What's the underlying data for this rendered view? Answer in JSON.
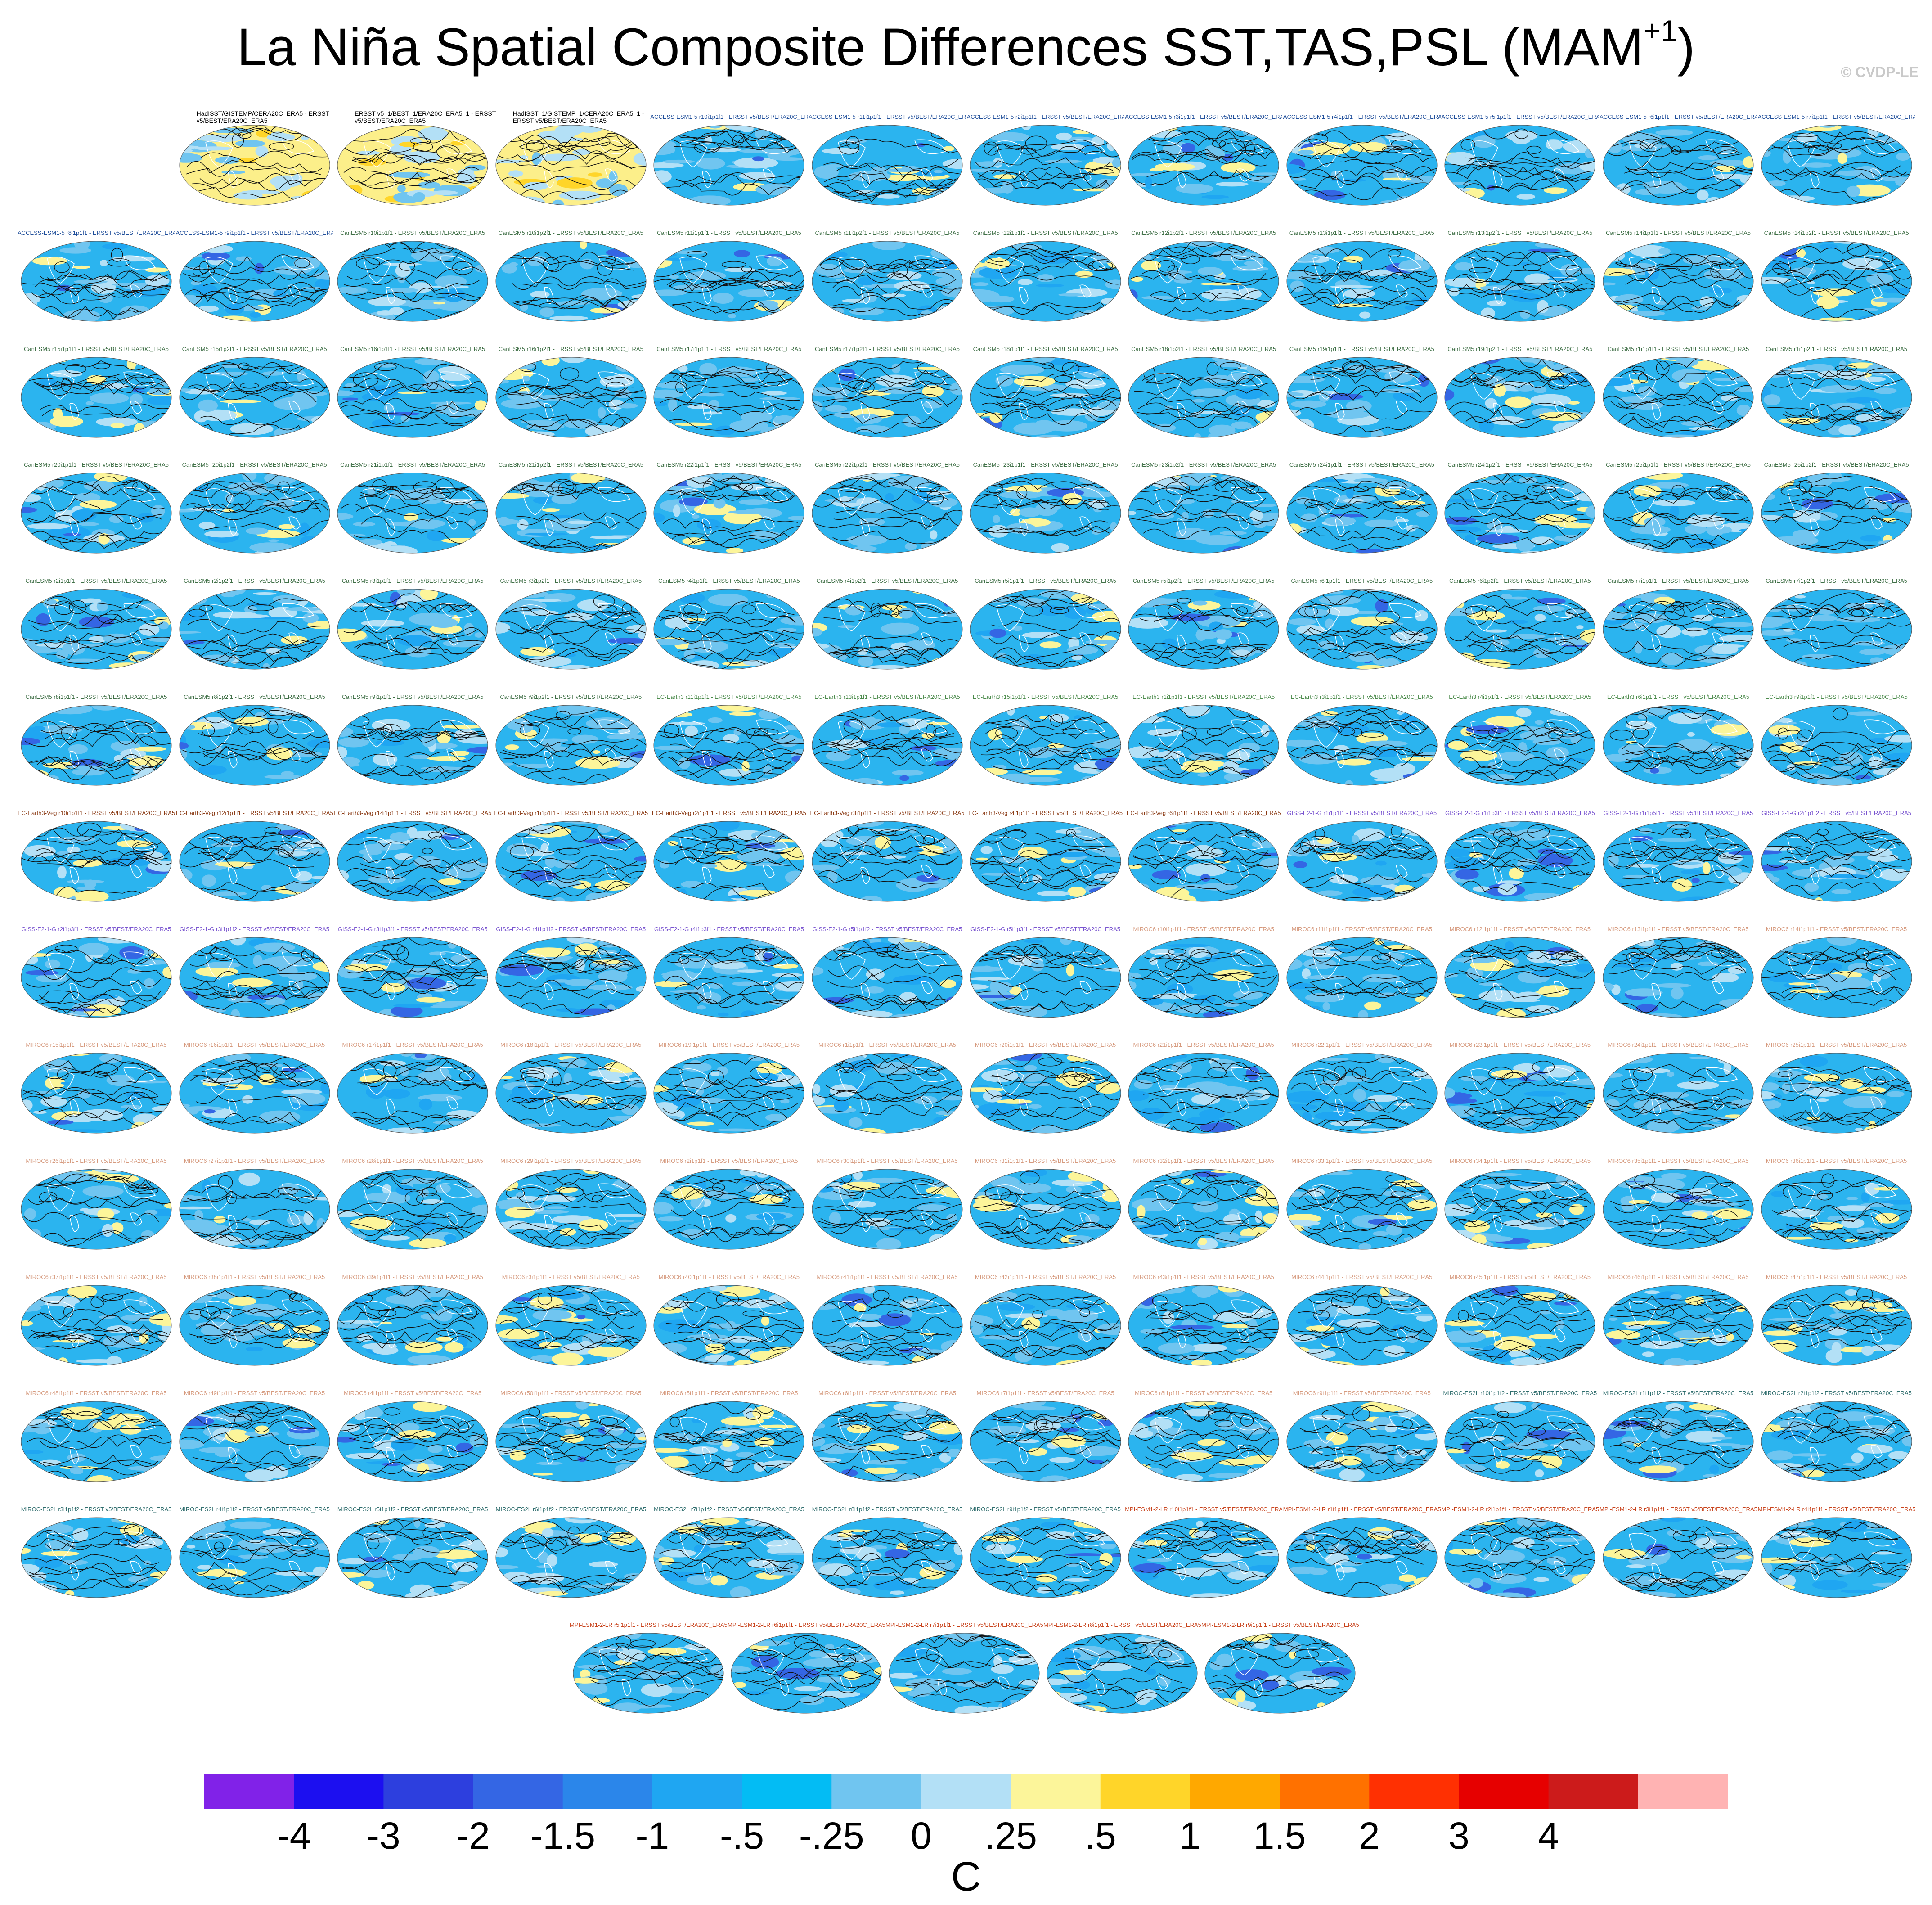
{
  "title_main": "La Niña Spatial Composite Differences SST,TAS,PSL (MAM",
  "title_sup": "+1",
  "title_end": ")",
  "credit": "© CVDP-LE",
  "unit": "C",
  "colorbar": {
    "colors": [
      "#8122e8",
      "#1c0ff0",
      "#2d3fde",
      "#3466e4",
      "#2b86ea",
      "#1fa6f2",
      "#03bcf4",
      "#70c5f0",
      "#b3e0f6",
      "#fcf59a",
      "#ffd529",
      "#ffa800",
      "#ff7100",
      "#ff3002",
      "#e60000",
      "#cc1b1b",
      "#ffb3b3"
    ],
    "labels": [
      "-4",
      "-3",
      "-2",
      "-1.5",
      "-1",
      "-.5",
      "-.25",
      "0",
      ".25",
      ".5",
      "1",
      "1.5",
      "2",
      "3",
      "4"
    ]
  },
  "chart_data": {
    "type": "heatmap",
    "projection": "global Robinson maps, SST/TAS shaded, PSL contoured",
    "field_units": "C",
    "levels": [
      -4,
      -3,
      -2,
      -1.5,
      -1,
      -0.5,
      -0.25,
      0,
      0.25,
      0.5,
      1,
      1.5,
      2,
      3,
      4
    ],
    "grid": "14 rows of 12 panels",
    "panels": [
      {
        "title": "HadISST/GISTEMP/CERA20C_ERA5 - ERSST v5/BEST/ERA20C_ERA5",
        "group": "obs"
      },
      {
        "title": "ERSST v5_1/BEST_1/ERA20C_ERA5_1 - ERSST v5/BEST/ERA20C_ERA5",
        "group": "obs"
      },
      {
        "title": "HadISST_1/GISTEMP_1/CERA20C_ERA5_1 - ERSST v5/BEST/ERA20C_ERA5",
        "group": "obs"
      },
      {
        "title": "ACCESS-ESM1-5 r10i1p1f1 - ERSST v5/BEST/ERA20C_ERA5",
        "group": "access"
      },
      {
        "title": "ACCESS-ESM1-5 r11i1p1f1 - ERSST v5/BEST/ERA20C_ERA5",
        "group": "access"
      },
      {
        "title": "ACCESS-ESM1-5 r2i1p1f1 - ERSST v5/BEST/ERA20C_ERA5",
        "group": "access"
      },
      {
        "title": "ACCESS-ESM1-5 r3i1p1f1 - ERSST v5/BEST/ERA20C_ERA5",
        "group": "access"
      },
      {
        "title": "ACCESS-ESM1-5 r4i1p1f1 - ERSST v5/BEST/ERA20C_ERA5",
        "group": "access"
      },
      {
        "title": "ACCESS-ESM1-5 r5i1p1f1 - ERSST v5/BEST/ERA20C_ERA5",
        "group": "access"
      },
      {
        "title": "ACCESS-ESM1-5 r6i1p1f1 - ERSST v5/BEST/ERA20C_ERA5",
        "group": "access"
      },
      {
        "title": "ACCESS-ESM1-5 r7i1p1f1 - ERSST v5/BEST/ERA20C_ERA5",
        "group": "access"
      },
      {
        "title": "ACCESS-ESM1-5 r8i1p1f1 - ERSST v5/BEST/ERA20C_ERA5",
        "group": "access"
      },
      {
        "title": "ACCESS-ESM1-5 r9i1p1f1 - ERSST v5/BEST/ERA20C_ERA5",
        "group": "access"
      },
      {
        "title": "CanESM5 r10i1p1f1 - ERSST v5/BEST/ERA20C_ERA5",
        "group": "canesm"
      },
      {
        "title": "CanESM5 r10i1p2f1 - ERSST v5/BEST/ERA20C_ERA5",
        "group": "canesm"
      },
      {
        "title": "CanESM5 r11i1p1f1 - ERSST v5/BEST/ERA20C_ERA5",
        "group": "canesm"
      },
      {
        "title": "CanESM5 r11i1p2f1 - ERSST v5/BEST/ERA20C_ERA5",
        "group": "canesm"
      },
      {
        "title": "CanESM5 r12i1p1f1 - ERSST v5/BEST/ERA20C_ERA5",
        "group": "canesm"
      },
      {
        "title": "CanESM5 r12i1p2f1 - ERSST v5/BEST/ERA20C_ERA5",
        "group": "canesm"
      },
      {
        "title": "CanESM5 r13i1p1f1 - ERSST v5/BEST/ERA20C_ERA5",
        "group": "canesm"
      },
      {
        "title": "CanESM5 r13i1p2f1 - ERSST v5/BEST/ERA20C_ERA5",
        "group": "canesm"
      },
      {
        "title": "CanESM5 r14i1p1f1 - ERSST v5/BEST/ERA20C_ERA5",
        "group": "canesm"
      },
      {
        "title": "CanESM5 r14i1p2f1 - ERSST v5/BEST/ERA20C_ERA5",
        "group": "canesm"
      },
      {
        "title": "CanESM5 r15i1p1f1 - ERSST v5/BEST/ERA20C_ERA5",
        "group": "canesm"
      },
      {
        "title": "CanESM5 r15i1p2f1 - ERSST v5/BEST/ERA20C_ERA5",
        "group": "canesm"
      },
      {
        "title": "CanESM5 r16i1p1f1 - ERSST v5/BEST/ERA20C_ERA5",
        "group": "canesm"
      },
      {
        "title": "CanESM5 r16i1p2f1 - ERSST v5/BEST/ERA20C_ERA5",
        "group": "canesm"
      },
      {
        "title": "CanESM5 r17i1p1f1 - ERSST v5/BEST/ERA20C_ERA5",
        "group": "canesm"
      },
      {
        "title": "CanESM5 r17i1p2f1 - ERSST v5/BEST/ERA20C_ERA5",
        "group": "canesm"
      },
      {
        "title": "CanESM5 r18i1p1f1 - ERSST v5/BEST/ERA20C_ERA5",
        "group": "canesm"
      },
      {
        "title": "CanESM5 r18i1p2f1 - ERSST v5/BEST/ERA20C_ERA5",
        "group": "canesm"
      },
      {
        "title": "CanESM5 r19i1p1f1 - ERSST v5/BEST/ERA20C_ERA5",
        "group": "canesm"
      },
      {
        "title": "CanESM5 r19i1p2f1 - ERSST v5/BEST/ERA20C_ERA5",
        "group": "canesm"
      },
      {
        "title": "CanESM5 r1i1p1f1 - ERSST v5/BEST/ERA20C_ERA5",
        "group": "canesm"
      },
      {
        "title": "CanESM5 r1i1p2f1 - ERSST v5/BEST/ERA20C_ERA5",
        "group": "canesm"
      },
      {
        "title": "CanESM5 r20i1p1f1 - ERSST v5/BEST/ERA20C_ERA5",
        "group": "canesm"
      },
      {
        "title": "CanESM5 r20i1p2f1 - ERSST v5/BEST/ERA20C_ERA5",
        "group": "canesm"
      },
      {
        "title": "CanESM5 r21i1p1f1 - ERSST v5/BEST/ERA20C_ERA5",
        "group": "canesm"
      },
      {
        "title": "CanESM5 r21i1p2f1 - ERSST v5/BEST/ERA20C_ERA5",
        "group": "canesm"
      },
      {
        "title": "CanESM5 r22i1p1f1 - ERSST v5/BEST/ERA20C_ERA5",
        "group": "canesm"
      },
      {
        "title": "CanESM5 r22i1p2f1 - ERSST v5/BEST/ERA20C_ERA5",
        "group": "canesm"
      },
      {
        "title": "CanESM5 r23i1p1f1 - ERSST v5/BEST/ERA20C_ERA5",
        "group": "canesm"
      },
      {
        "title": "CanESM5 r23i1p2f1 - ERSST v5/BEST/ERA20C_ERA5",
        "group": "canesm"
      },
      {
        "title": "CanESM5 r24i1p1f1 - ERSST v5/BEST/ERA20C_ERA5",
        "group": "canesm"
      },
      {
        "title": "CanESM5 r24i1p2f1 - ERSST v5/BEST/ERA20C_ERA5",
        "group": "canesm"
      },
      {
        "title": "CanESM5 r25i1p1f1 - ERSST v5/BEST/ERA20C_ERA5",
        "group": "canesm"
      },
      {
        "title": "CanESM5 r25i1p2f1 - ERSST v5/BEST/ERA20C_ERA5",
        "group": "canesm"
      },
      {
        "title": "CanESM5 r2i1p1f1 - ERSST v5/BEST/ERA20C_ERA5",
        "group": "canesm"
      },
      {
        "title": "CanESM5 r2i1p2f1 - ERSST v5/BEST/ERA20C_ERA5",
        "group": "canesm"
      },
      {
        "title": "CanESM5 r3i1p1f1 - ERSST v5/BEST/ERA20C_ERA5",
        "group": "canesm"
      },
      {
        "title": "CanESM5 r3i1p2f1 - ERSST v5/BEST/ERA20C_ERA5",
        "group": "canesm"
      },
      {
        "title": "CanESM5 r4i1p1f1 - ERSST v5/BEST/ERA20C_ERA5",
        "group": "canesm"
      },
      {
        "title": "CanESM5 r4i1p2f1 - ERSST v5/BEST/ERA20C_ERA5",
        "group": "canesm"
      },
      {
        "title": "CanESM5 r5i1p1f1 - ERSST v5/BEST/ERA20C_ERA5",
        "group": "canesm"
      },
      {
        "title": "CanESM5 r5i1p2f1 - ERSST v5/BEST/ERA20C_ERA5",
        "group": "canesm"
      },
      {
        "title": "CanESM5 r6i1p1f1 - ERSST v5/BEST/ERA20C_ERA5",
        "group": "canesm"
      },
      {
        "title": "CanESM5 r6i1p2f1 - ERSST v5/BEST/ERA20C_ERA5",
        "group": "canesm"
      },
      {
        "title": "CanESM5 r7i1p1f1 - ERSST v5/BEST/ERA20C_ERA5",
        "group": "canesm"
      },
      {
        "title": "CanESM5 r7i1p2f1 - ERSST v5/BEST/ERA20C_ERA5",
        "group": "canesm"
      },
      {
        "title": "CanESM5 r8i1p1f1 - ERSST v5/BEST/ERA20C_ERA5",
        "group": "canesm"
      },
      {
        "title": "CanESM5 r8i1p2f1 - ERSST v5/BEST/ERA20C_ERA5",
        "group": "canesm"
      },
      {
        "title": "CanESM5 r9i1p1f1 - ERSST v5/BEST/ERA20C_ERA5",
        "group": "canesm"
      },
      {
        "title": "CanESM5 r9i1p2f1 - ERSST v5/BEST/ERA20C_ERA5",
        "group": "canesm"
      },
      {
        "title": "EC-Earth3 r11i1p1f1 - ERSST v5/BEST/ERA20C_ERA5",
        "group": "ecearth"
      },
      {
        "title": "EC-Earth3 r13i1p1f1 - ERSST v5/BEST/ERA20C_ERA5",
        "group": "ecearth"
      },
      {
        "title": "EC-Earth3 r15i1p1f1 - ERSST v5/BEST/ERA20C_ERA5",
        "group": "ecearth"
      },
      {
        "title": "EC-Earth3 r1i1p1f1 - ERSST v5/BEST/ERA20C_ERA5",
        "group": "ecearth"
      },
      {
        "title": "EC-Earth3 r3i1p1f1 - ERSST v5/BEST/ERA20C_ERA5",
        "group": "ecearth"
      },
      {
        "title": "EC-Earth3 r4i1p1f1 - ERSST v5/BEST/ERA20C_ERA5",
        "group": "ecearth"
      },
      {
        "title": "EC-Earth3 r6i1p1f1 - ERSST v5/BEST/ERA20C_ERA5",
        "group": "ecearth"
      },
      {
        "title": "EC-Earth3 r9i1p1f1 - ERSST v5/BEST/ERA20C_ERA5",
        "group": "ecearth"
      },
      {
        "title": "EC-Earth3-Veg r10i1p1f1 - ERSST v5/BEST/ERA20C_ERA5",
        "group": "ecveg"
      },
      {
        "title": "EC-Earth3-Veg r12i1p1f1 - ERSST v5/BEST/ERA20C_ERA5",
        "group": "ecveg"
      },
      {
        "title": "EC-Earth3-Veg r14i1p1f1 - ERSST v5/BEST/ERA20C_ERA5",
        "group": "ecveg"
      },
      {
        "title": "EC-Earth3-Veg r1i1p1f1 - ERSST v5/BEST/ERA20C_ERA5",
        "group": "ecveg"
      },
      {
        "title": "EC-Earth3-Veg r2i1p1f1 - ERSST v5/BEST/ERA20C_ERA5",
        "group": "ecveg"
      },
      {
        "title": "EC-Earth3-Veg r3i1p1f1 - ERSST v5/BEST/ERA20C_ERA5",
        "group": "ecveg"
      },
      {
        "title": "EC-Earth3-Veg r4i1p1f1 - ERSST v5/BEST/ERA20C_ERA5",
        "group": "ecveg"
      },
      {
        "title": "EC-Earth3-Veg r6i1p1f1 - ERSST v5/BEST/ERA20C_ERA5",
        "group": "ecveg"
      },
      {
        "title": "GISS-E2-1-G r1i1p1f1 - ERSST v5/BEST/ERA20C_ERA5",
        "group": "giss"
      },
      {
        "title": "GISS-E2-1-G r1i1p3f1 - ERSST v5/BEST/ERA20C_ERA5",
        "group": "giss"
      },
      {
        "title": "GISS-E2-1-G r1i1p5f1 - ERSST v5/BEST/ERA20C_ERA5",
        "group": "giss"
      },
      {
        "title": "GISS-E2-1-G r2i1p1f2 - ERSST v5/BEST/ERA20C_ERA5",
        "group": "giss"
      },
      {
        "title": "GISS-E2-1-G r2i1p3f1 - ERSST v5/BEST/ERA20C_ERA5",
        "group": "giss"
      },
      {
        "title": "GISS-E2-1-G r3i1p1f2 - ERSST v5/BEST/ERA20C_ERA5",
        "group": "giss"
      },
      {
        "title": "GISS-E2-1-G r3i1p3f1 - ERSST v5/BEST/ERA20C_ERA5",
        "group": "giss"
      },
      {
        "title": "GISS-E2-1-G r4i1p1f2 - ERSST v5/BEST/ERA20C_ERA5",
        "group": "giss"
      },
      {
        "title": "GISS-E2-1-G r4i1p3f1 - ERSST v5/BEST/ERA20C_ERA5",
        "group": "giss"
      },
      {
        "title": "GISS-E2-1-G r5i1p1f2 - ERSST v5/BEST/ERA20C_ERA5",
        "group": "giss"
      },
      {
        "title": "GISS-E2-1-G r5i1p3f1 - ERSST v5/BEST/ERA20C_ERA5",
        "group": "giss"
      },
      {
        "title": "MIROC6 r10i1p1f1 - ERSST v5/BEST/ERA20C_ERA5",
        "group": "miroc6"
      },
      {
        "title": "MIROC6 r11i1p1f1 - ERSST v5/BEST/ERA20C_ERA5",
        "group": "miroc6"
      },
      {
        "title": "MIROC6 r12i1p1f1 - ERSST v5/BEST/ERA20C_ERA5",
        "group": "miroc6"
      },
      {
        "title": "MIROC6 r13i1p1f1 - ERSST v5/BEST/ERA20C_ERA5",
        "group": "miroc6"
      },
      {
        "title": "MIROC6 r14i1p1f1 - ERSST v5/BEST/ERA20C_ERA5",
        "group": "miroc6"
      },
      {
        "title": "MIROC6 r15i1p1f1 - ERSST v5/BEST/ERA20C_ERA5",
        "group": "miroc6"
      },
      {
        "title": "MIROC6 r16i1p1f1 - ERSST v5/BEST/ERA20C_ERA5",
        "group": "miroc6"
      },
      {
        "title": "MIROC6 r17i1p1f1 - ERSST v5/BEST/ERA20C_ERA5",
        "group": "miroc6"
      },
      {
        "title": "MIROC6 r18i1p1f1 - ERSST v5/BEST/ERA20C_ERA5",
        "group": "miroc6"
      },
      {
        "title": "MIROC6 r19i1p1f1 - ERSST v5/BEST/ERA20C_ERA5",
        "group": "miroc6"
      },
      {
        "title": "MIROC6 r1i1p1f1 - ERSST v5/BEST/ERA20C_ERA5",
        "group": "miroc6"
      },
      {
        "title": "MIROC6 r20i1p1f1 - ERSST v5/BEST/ERA20C_ERA5",
        "group": "miroc6"
      },
      {
        "title": "MIROC6 r21i1p1f1 - ERSST v5/BEST/ERA20C_ERA5",
        "group": "miroc6"
      },
      {
        "title": "MIROC6 r22i1p1f1 - ERSST v5/BEST/ERA20C_ERA5",
        "group": "miroc6"
      },
      {
        "title": "MIROC6 r23i1p1f1 - ERSST v5/BEST/ERA20C_ERA5",
        "group": "miroc6"
      },
      {
        "title": "MIROC6 r24i1p1f1 - ERSST v5/BEST/ERA20C_ERA5",
        "group": "miroc6"
      },
      {
        "title": "MIROC6 r25i1p1f1 - ERSST v5/BEST/ERA20C_ERA5",
        "group": "miroc6"
      },
      {
        "title": "MIROC6 r26i1p1f1 - ERSST v5/BEST/ERA20C_ERA5",
        "group": "miroc6"
      },
      {
        "title": "MIROC6 r27i1p1f1 - ERSST v5/BEST/ERA20C_ERA5",
        "group": "miroc6"
      },
      {
        "title": "MIROC6 r28i1p1f1 - ERSST v5/BEST/ERA20C_ERA5",
        "group": "miroc6"
      },
      {
        "title": "MIROC6 r29i1p1f1 - ERSST v5/BEST/ERA20C_ERA5",
        "group": "miroc6"
      },
      {
        "title": "MIROC6 r2i1p1f1 - ERSST v5/BEST/ERA20C_ERA5",
        "group": "miroc6"
      },
      {
        "title": "MIROC6 r30i1p1f1 - ERSST v5/BEST/ERA20C_ERA5",
        "group": "miroc6"
      },
      {
        "title": "MIROC6 r31i1p1f1 - ERSST v5/BEST/ERA20C_ERA5",
        "group": "miroc6"
      },
      {
        "title": "MIROC6 r32i1p1f1 - ERSST v5/BEST/ERA20C_ERA5",
        "group": "miroc6"
      },
      {
        "title": "MIROC6 r33i1p1f1 - ERSST v5/BEST/ERA20C_ERA5",
        "group": "miroc6"
      },
      {
        "title": "MIROC6 r34i1p1f1 - ERSST v5/BEST/ERA20C_ERA5",
        "group": "miroc6"
      },
      {
        "title": "MIROC6 r35i1p1f1 - ERSST v5/BEST/ERA20C_ERA5",
        "group": "miroc6"
      },
      {
        "title": "MIROC6 r36i1p1f1 - ERSST v5/BEST/ERA20C_ERA5",
        "group": "miroc6"
      },
      {
        "title": "MIROC6 r37i1p1f1 - ERSST v5/BEST/ERA20C_ERA5",
        "group": "miroc6"
      },
      {
        "title": "MIROC6 r38i1p1f1 - ERSST v5/BEST/ERA20C_ERA5",
        "group": "miroc6"
      },
      {
        "title": "MIROC6 r39i1p1f1 - ERSST v5/BEST/ERA20C_ERA5",
        "group": "miroc6"
      },
      {
        "title": "MIROC6 r3i1p1f1 - ERSST v5/BEST/ERA20C_ERA5",
        "group": "miroc6"
      },
      {
        "title": "MIROC6 r40i1p1f1 - ERSST v5/BEST/ERA20C_ERA5",
        "group": "miroc6"
      },
      {
        "title": "MIROC6 r41i1p1f1 - ERSST v5/BEST/ERA20C_ERA5",
        "group": "miroc6"
      },
      {
        "title": "MIROC6 r42i1p1f1 - ERSST v5/BEST/ERA20C_ERA5",
        "group": "miroc6"
      },
      {
        "title": "MIROC6 r43i1p1f1 - ERSST v5/BEST/ERA20C_ERA5",
        "group": "miroc6"
      },
      {
        "title": "MIROC6 r44i1p1f1 - ERSST v5/BEST/ERA20C_ERA5",
        "group": "miroc6"
      },
      {
        "title": "MIROC6 r45i1p1f1 - ERSST v5/BEST/ERA20C_ERA5",
        "group": "miroc6"
      },
      {
        "title": "MIROC6 r46i1p1f1 - ERSST v5/BEST/ERA20C_ERA5",
        "group": "miroc6"
      },
      {
        "title": "MIROC6 r47i1p1f1 - ERSST v5/BEST/ERA20C_ERA5",
        "group": "miroc6"
      },
      {
        "title": "MIROC6 r48i1p1f1 - ERSST v5/BEST/ERA20C_ERA5",
        "group": "miroc6"
      },
      {
        "title": "MIROC6 r49i1p1f1 - ERSST v5/BEST/ERA20C_ERA5",
        "group": "miroc6"
      },
      {
        "title": "MIROC6 r4i1p1f1 - ERSST v5/BEST/ERA20C_ERA5",
        "group": "miroc6"
      },
      {
        "title": "MIROC6 r50i1p1f1 - ERSST v5/BEST/ERA20C_ERA5",
        "group": "miroc6"
      },
      {
        "title": "MIROC6 r5i1p1f1 - ERSST v5/BEST/ERA20C_ERA5",
        "group": "miroc6"
      },
      {
        "title": "MIROC6 r6i1p1f1 - ERSST v5/BEST/ERA20C_ERA5",
        "group": "miroc6"
      },
      {
        "title": "MIROC6 r7i1p1f1 - ERSST v5/BEST/ERA20C_ERA5",
        "group": "miroc6"
      },
      {
        "title": "MIROC6 r8i1p1f1 - ERSST v5/BEST/ERA20C_ERA5",
        "group": "miroc6"
      },
      {
        "title": "MIROC6 r9i1p1f1 - ERSST v5/BEST/ERA20C_ERA5",
        "group": "miroc6"
      },
      {
        "title": "MIROC-ES2L r10i1p1f2 - ERSST v5/BEST/ERA20C_ERA5",
        "group": "miroces2l"
      },
      {
        "title": "MIROC-ES2L r1i1p1f2 - ERSST v5/BEST/ERA20C_ERA5",
        "group": "miroces2l"
      },
      {
        "title": "MIROC-ES2L r2i1p1f2 - ERSST v5/BEST/ERA20C_ERA5",
        "group": "miroces2l"
      },
      {
        "title": "MIROC-ES2L r3i1p1f2 - ERSST v5/BEST/ERA20C_ERA5",
        "group": "miroces2l"
      },
      {
        "title": "MIROC-ES2L r4i1p1f2 - ERSST v5/BEST/ERA20C_ERA5",
        "group": "miroces2l"
      },
      {
        "title": "MIROC-ES2L r5i1p1f2 - ERSST v5/BEST/ERA20C_ERA5",
        "group": "miroces2l"
      },
      {
        "title": "MIROC-ES2L r6i1p1f2 - ERSST v5/BEST/ERA20C_ERA5",
        "group": "miroces2l"
      },
      {
        "title": "MIROC-ES2L r7i1p1f2 - ERSST v5/BEST/ERA20C_ERA5",
        "group": "miroces2l"
      },
      {
        "title": "MIROC-ES2L r8i1p1f2 - ERSST v5/BEST/ERA20C_ERA5",
        "group": "miroces2l"
      },
      {
        "title": "MIROC-ES2L r9i1p1f2 - ERSST v5/BEST/ERA20C_ERA5",
        "group": "miroces2l"
      },
      {
        "title": "MPI-ESM1-2-LR r10i1p1f1 - ERSST v5/BEST/ERA20C_ERA5",
        "group": "mpi"
      },
      {
        "title": "MPI-ESM1-2-LR r1i1p1f1 - ERSST v5/BEST/ERA20C_ERA5",
        "group": "mpi"
      },
      {
        "title": "MPI-ESM1-2-LR r2i1p1f1 - ERSST v5/BEST/ERA20C_ERA5",
        "group": "mpi"
      },
      {
        "title": "MPI-ESM1-2-LR r3i1p1f1 - ERSST v5/BEST/ERA20C_ERA5",
        "group": "mpi"
      },
      {
        "title": "MPI-ESM1-2-LR r4i1p1f1 - ERSST v5/BEST/ERA20C_ERA5",
        "group": "mpi"
      },
      {
        "title": "MPI-ESM1-2-LR r5i1p1f1 - ERSST v5/BEST/ERA20C_ERA5",
        "group": "mpi"
      },
      {
        "title": "MPI-ESM1-2-LR r6i1p1f1 - ERSST v5/BEST/ERA20C_ERA5",
        "group": "mpi"
      },
      {
        "title": "MPI-ESM1-2-LR r7i1p1f1 - ERSST v5/BEST/ERA20C_ERA5",
        "group": "mpi"
      },
      {
        "title": "MPI-ESM1-2-LR r8i1p1f1 - ERSST v5/BEST/ERA20C_ERA5",
        "group": "mpi"
      },
      {
        "title": "MPI-ESM1-2-LR r9i1p1f1 - ERSST v5/BEST/ERA20C_ERA5",
        "group": "mpi"
      }
    ]
  },
  "group_colors": {
    "obs": "#000000",
    "access": "#1f4e9a",
    "canesm": "#3f6f46",
    "ecearth": "#4a8a4a",
    "ecveg": "#8a3a14",
    "giss": "#7a55d0",
    "miroc6": "#d69a7e",
    "miroces2l": "#2f6d6d",
    "mpi": "#c8431c"
  }
}
